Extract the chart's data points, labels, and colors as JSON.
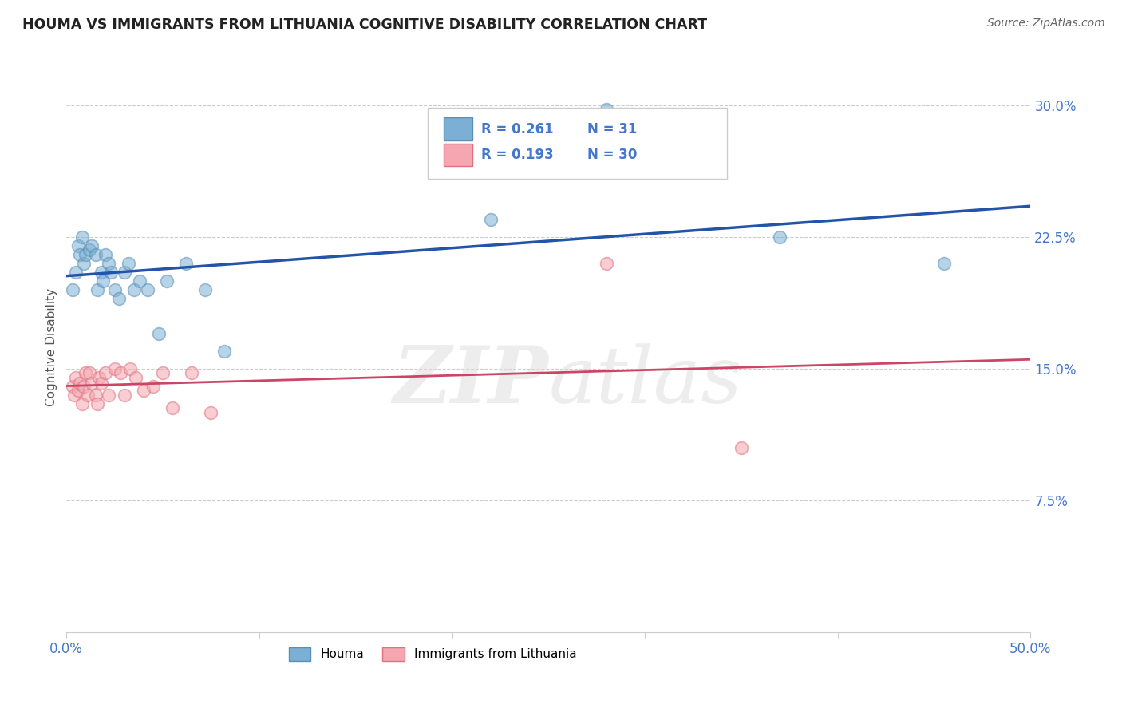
{
  "title": "HOUMA VS IMMIGRANTS FROM LITHUANIA COGNITIVE DISABILITY CORRELATION CHART",
  "source": "Source: ZipAtlas.com",
  "ylabel": "Cognitive Disability",
  "xlim": [
    0.0,
    0.5
  ],
  "ylim": [
    0.0,
    0.325
  ],
  "xticks": [
    0.0,
    0.1,
    0.2,
    0.3,
    0.4,
    0.5
  ],
  "xtick_labels": [
    "0.0%",
    "",
    "",
    "",
    "",
    "50.0%"
  ],
  "yticks": [
    0.075,
    0.15,
    0.225,
    0.3
  ],
  "ytick_labels": [
    "7.5%",
    "15.0%",
    "22.5%",
    "30.0%"
  ],
  "legend_label1": "Houma",
  "legend_label2": "Immigrants from Lithuania",
  "watermark_zip": "ZIP",
  "watermark_atlas": "atlas",
  "blue_color": "#7BAFD4",
  "pink_color": "#F4A7B0",
  "blue_edge": "#5A8FB5",
  "pink_edge": "#E07080",
  "trend_blue": "#2255AA",
  "trend_pink": "#CC4466",
  "grid_color": "#CCCCCC",
  "tick_color": "#4477CC",
  "houma_x": [
    0.003,
    0.005,
    0.006,
    0.007,
    0.008,
    0.009,
    0.01,
    0.012,
    0.013,
    0.015,
    0.016,
    0.018,
    0.019,
    0.02,
    0.022,
    0.023,
    0.025,
    0.027,
    0.03,
    0.032,
    0.035,
    0.038,
    0.042,
    0.048,
    0.052,
    0.062,
    0.072,
    0.082,
    0.22,
    0.37,
    0.455
  ],
  "houma_y": [
    0.195,
    0.205,
    0.22,
    0.215,
    0.225,
    0.21,
    0.215,
    0.218,
    0.22,
    0.215,
    0.195,
    0.205,
    0.2,
    0.215,
    0.21,
    0.205,
    0.195,
    0.19,
    0.205,
    0.21,
    0.195,
    0.2,
    0.195,
    0.17,
    0.2,
    0.21,
    0.195,
    0.16,
    0.235,
    0.225,
    0.21
  ],
  "lith_x": [
    0.003,
    0.004,
    0.005,
    0.006,
    0.007,
    0.008,
    0.009,
    0.01,
    0.011,
    0.012,
    0.013,
    0.015,
    0.016,
    0.017,
    0.018,
    0.02,
    0.022,
    0.025,
    0.028,
    0.03,
    0.033,
    0.036,
    0.04,
    0.045,
    0.05,
    0.055,
    0.065,
    0.075,
    0.28,
    0.35
  ],
  "lith_y": [
    0.14,
    0.135,
    0.145,
    0.138,
    0.142,
    0.13,
    0.14,
    0.148,
    0.135,
    0.148,
    0.142,
    0.135,
    0.13,
    0.145,
    0.142,
    0.148,
    0.135,
    0.15,
    0.148,
    0.135,
    0.15,
    0.145,
    0.138,
    0.14,
    0.148,
    0.128,
    0.148,
    0.125,
    0.21,
    0.105
  ],
  "houma_outlier_x": [
    0.28
  ],
  "houma_outlier_y": [
    0.298
  ],
  "pink_outlier_x": [
    0.28
  ],
  "pink_outlier_y": [
    0.205
  ]
}
